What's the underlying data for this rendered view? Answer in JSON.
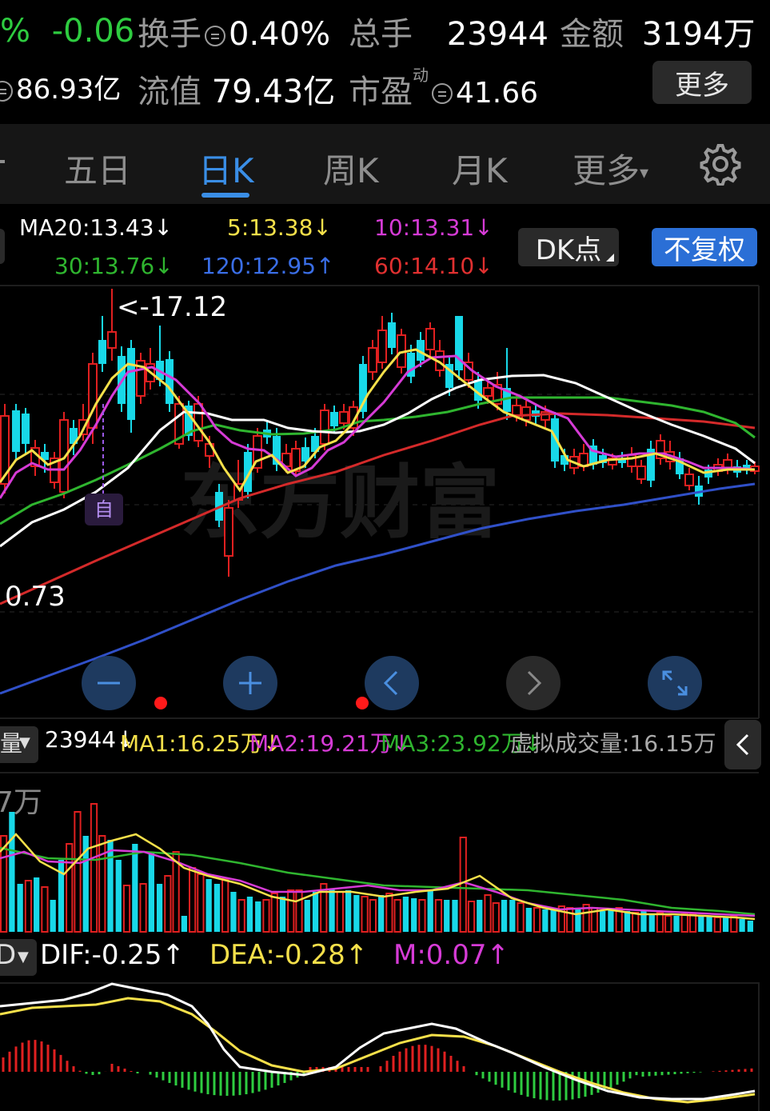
{
  "quote": {
    "pct": "%",
    "change": "-0.06",
    "turnover_label": "换手",
    "turnover_value": "0.40%",
    "volume_label": "总手",
    "volume_value": "23944",
    "amount_label": "金额",
    "amount_value": "3194万",
    "total_cap_value": "86.93亿",
    "float_label": "流值",
    "float_value": "79.43亿",
    "pe_label": "市盈",
    "pe_sup": "动",
    "pe_value": "41.66",
    "more_label": "更多"
  },
  "tabs": {
    "five_day": "五日",
    "day_k": "日K",
    "week_k": "周K",
    "month_k": "月K",
    "more": "更多",
    "settings_icon": "gear-icon"
  },
  "ma": {
    "ma20": "MA20:13.43↓",
    "ma5": "5:13.38↓",
    "ma10": "10:13.31↓",
    "ma30": "30:13.76↓",
    "ma120": "120:12.95↑",
    "ma60": "60:14.10↓",
    "dk_label": "DK点",
    "fq_label": "不复权"
  },
  "chart_data": {
    "type": "candlestick",
    "price_high_label": "<-17.12",
    "price_low_label": "0.73",
    "marker_label": "自",
    "watermark": "东方财富",
    "ma_colors": {
      "ma5": "#f5e04a",
      "ma10": "#d63bd6",
      "ma20": "#ffffff",
      "ma30": "#2fb52f",
      "ma60": "#d42a2a",
      "ma120": "#3050c8"
    }
  },
  "controls": {
    "zoom_out": "minus-icon",
    "zoom_in": "plus-icon",
    "prev": "chevron-left-icon",
    "next": "chevron-right-icon",
    "fullscreen": "expand-icon"
  },
  "volume": {
    "indicator": "量",
    "value": "23944↓",
    "ma1": "MA1:16.25万↓",
    "ma2": "MA2:19.21万↓",
    "ma3": "MA3:23.92万↓",
    "virtual": "虚拟成交量:16.15万",
    "axis_label": "7万"
  },
  "macd": {
    "indicator": "D",
    "dif": "DIF:-0.25↑",
    "dea": "DEA:-0.28↑",
    "m": "M:0.07↑"
  }
}
